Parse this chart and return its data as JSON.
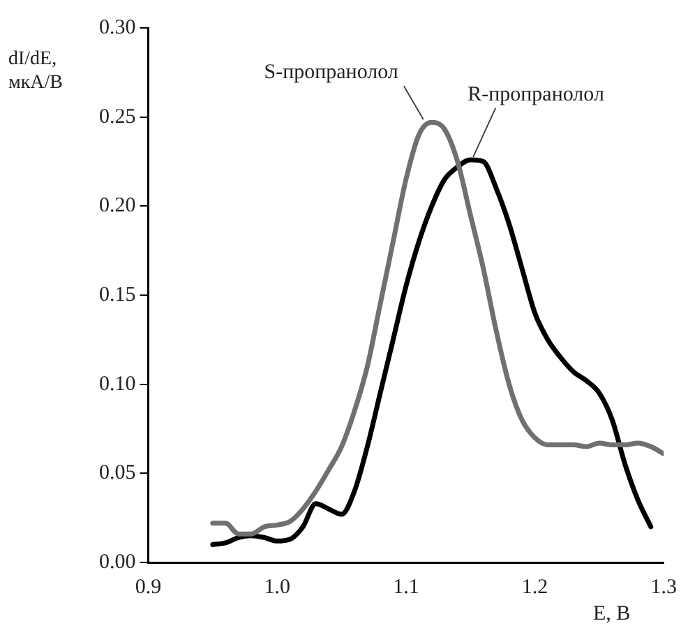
{
  "chart_data": {
    "type": "line",
    "xlabel": "E, В",
    "ylabel": "dI/dE, мкА/В",
    "xlim": [
      0.9,
      1.3
    ],
    "xticks": [
      0.9,
      {
        "value": 1,
        "label": "1.0"
      },
      1.1,
      1.2,
      1.3
    ],
    "ylim": [
      0,
      0.3
    ],
    "yticks": [
      {
        "value": 0,
        "label": "0.00"
      },
      {
        "value": 0.05,
        "label": "0.05"
      },
      {
        "value": 0.1,
        "label": "0.10"
      },
      {
        "value": 0.15,
        "label": "0.15"
      },
      {
        "value": 0.2,
        "label": "0.20"
      },
      {
        "value": 0.25,
        "label": "0.25"
      },
      {
        "value": 0.3,
        "label": "0.30"
      }
    ],
    "grid": false,
    "legend": false,
    "marker": "none",
    "line_style": "solid",
    "series": [
      {
        "name": "S-пропранолол",
        "color": "#707070",
        "x": [
          0.95,
          0.96,
          0.97,
          0.98,
          0.99,
          1.0,
          1.01,
          1.02,
          1.03,
          1.04,
          1.05,
          1.06,
          1.07,
          1.08,
          1.09,
          1.1,
          1.11,
          1.12,
          1.13,
          1.14,
          1.15,
          1.16,
          1.17,
          1.18,
          1.19,
          1.2,
          1.21,
          1.22,
          1.23,
          1.24,
          1.25,
          1.26,
          1.27,
          1.28,
          1.29,
          1.3
        ],
        "values": [
          0.022,
          0.022,
          0.016,
          0.016,
          0.02,
          0.021,
          0.023,
          0.03,
          0.04,
          0.052,
          0.065,
          0.085,
          0.11,
          0.145,
          0.18,
          0.215,
          0.24,
          0.247,
          0.243,
          0.225,
          0.195,
          0.165,
          0.13,
          0.1,
          0.08,
          0.07,
          0.066,
          0.066,
          0.066,
          0.065,
          0.067,
          0.066,
          0.066,
          0.067,
          0.065,
          0.061
        ]
      },
      {
        "name": "R-пропранолол",
        "color": "#000000",
        "x": [
          0.95,
          0.96,
          0.97,
          0.98,
          0.99,
          1.0,
          1.01,
          1.02,
          1.03,
          1.04,
          1.05,
          1.06,
          1.07,
          1.08,
          1.09,
          1.1,
          1.11,
          1.12,
          1.13,
          1.14,
          1.15,
          1.16,
          1.17,
          1.18,
          1.19,
          1.2,
          1.21,
          1.22,
          1.23,
          1.24,
          1.25,
          1.26,
          1.27,
          1.28,
          1.29
        ],
        "values": [
          0.01,
          0.011,
          0.014,
          0.015,
          0.014,
          0.012,
          0.013,
          0.02,
          0.033,
          0.03,
          0.027,
          0.04,
          0.065,
          0.095,
          0.125,
          0.155,
          0.18,
          0.2,
          0.215,
          0.222,
          0.226,
          0.225,
          0.21,
          0.19,
          0.165,
          0.14,
          0.125,
          0.115,
          0.107,
          0.102,
          0.095,
          0.08,
          0.055,
          0.035,
          0.02
        ]
      }
    ]
  }
}
